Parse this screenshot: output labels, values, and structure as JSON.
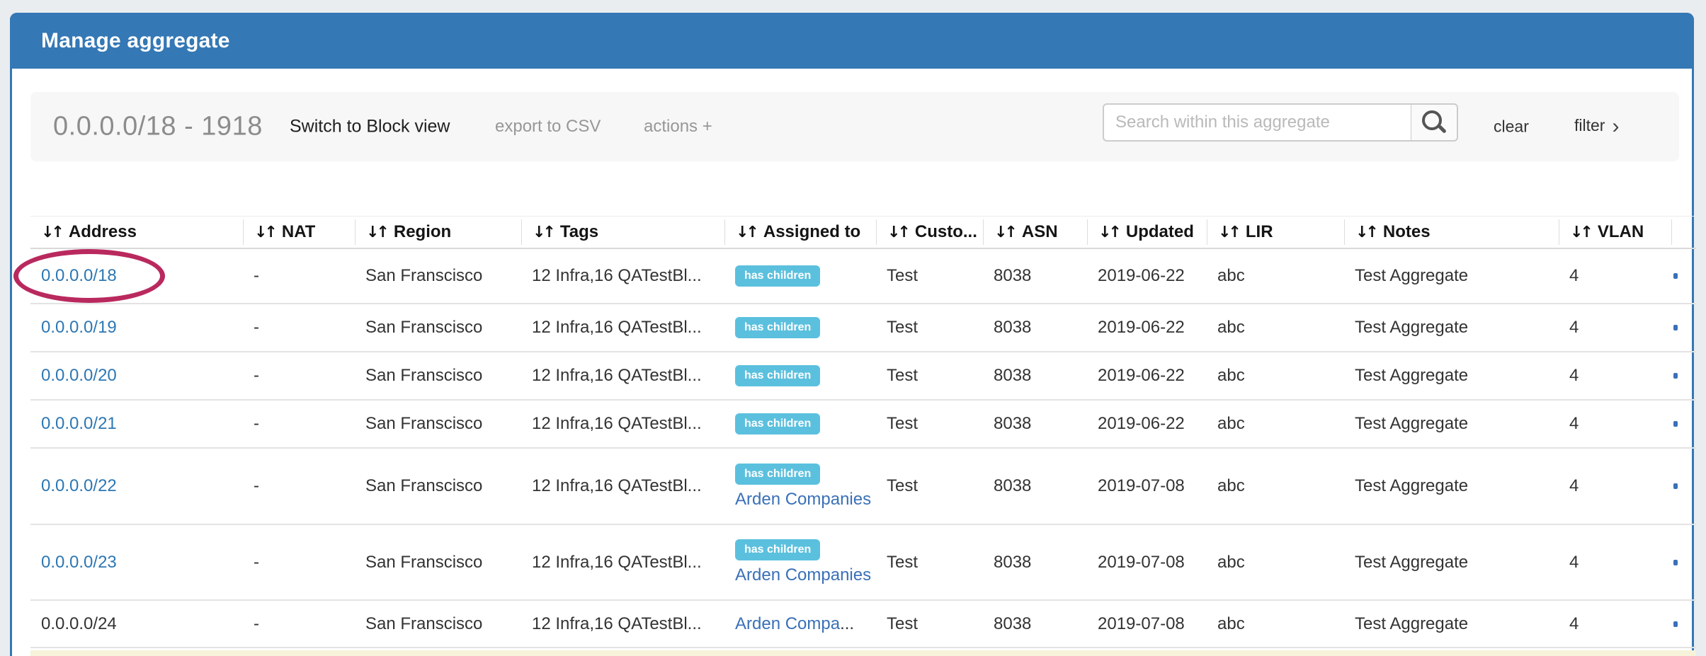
{
  "page": {
    "title": "Manage aggregate"
  },
  "toolbar": {
    "aggregate_label": "0.0.0.0/18 - 1918",
    "switch_view_label": "Switch to Block view",
    "export_csv_label": "export to CSV",
    "actions_label": "actions +",
    "search": {
      "placeholder": "Search within this aggregate",
      "value": ""
    },
    "clear_label": "clear",
    "filter_label": "filter",
    "filter_chevron": "›"
  },
  "table": {
    "sort_glyph": "↓↑",
    "badge_label": "has children",
    "columns": [
      "Address",
      "NAT",
      "Region",
      "Tags",
      "Assigned to",
      "Custo...",
      "ASN",
      "Updated",
      "LIR",
      "Notes",
      "VLAN"
    ],
    "rows": [
      {
        "address": "0.0.0.0/18",
        "address_is_link": true,
        "circled": true,
        "nat": "-",
        "region": "San Franscisco",
        "tags": "12 Infra,16 QATestBl...",
        "has_children": true,
        "assigned_to": "",
        "assigned_truncated": "",
        "customer": "Test",
        "asn": "8038",
        "updated": "2019-06-22",
        "lir": "abc",
        "notes": "Test Aggregate",
        "vlan": "4"
      },
      {
        "address": "0.0.0.0/19",
        "address_is_link": true,
        "circled": false,
        "nat": "-",
        "region": "San Franscisco",
        "tags": "12 Infra,16 QATestBl...",
        "has_children": true,
        "assigned_to": "",
        "assigned_truncated": "",
        "customer": "Test",
        "asn": "8038",
        "updated": "2019-06-22",
        "lir": "abc",
        "notes": "Test Aggregate",
        "vlan": "4"
      },
      {
        "address": "0.0.0.0/20",
        "address_is_link": true,
        "circled": false,
        "nat": "-",
        "region": "San Franscisco",
        "tags": "12 Infra,16 QATestBl...",
        "has_children": true,
        "assigned_to": "",
        "assigned_truncated": "",
        "customer": "Test",
        "asn": "8038",
        "updated": "2019-06-22",
        "lir": "abc",
        "notes": "Test Aggregate",
        "vlan": "4"
      },
      {
        "address": "0.0.0.0/21",
        "address_is_link": true,
        "circled": false,
        "nat": "-",
        "region": "San Franscisco",
        "tags": "12 Infra,16 QATestBl...",
        "has_children": true,
        "assigned_to": "",
        "assigned_truncated": "",
        "customer": "Test",
        "asn": "8038",
        "updated": "2019-06-22",
        "lir": "abc",
        "notes": "Test Aggregate",
        "vlan": "4"
      },
      {
        "address": "0.0.0.0/22",
        "address_is_link": true,
        "circled": false,
        "nat": "-",
        "region": "San Franscisco",
        "tags": "12 Infra,16 QATestBl...",
        "has_children": true,
        "assigned_to": "Arden Companies",
        "assigned_truncated": "",
        "customer": "Test",
        "asn": "8038",
        "updated": "2019-07-08",
        "lir": "abc",
        "notes": "Test Aggregate",
        "vlan": "4"
      },
      {
        "address": "0.0.0.0/23",
        "address_is_link": true,
        "circled": false,
        "nat": "-",
        "region": "San Franscisco",
        "tags": "12 Infra,16 QATestBl...",
        "has_children": true,
        "assigned_to": "Arden Companies",
        "assigned_truncated": "",
        "customer": "Test",
        "asn": "8038",
        "updated": "2019-07-08",
        "lir": "abc",
        "notes": "Test Aggregate",
        "vlan": "4"
      },
      {
        "address": "0.0.0.0/24",
        "address_is_link": false,
        "circled": false,
        "nat": "-",
        "region": "San Franscisco",
        "tags": "12 Infra,16 QATestBl...",
        "has_children": false,
        "assigned_to": "Arden Compa",
        "assigned_truncated": "...",
        "customer": "Test",
        "asn": "8038",
        "updated": "2019-07-08",
        "lir": "abc",
        "notes": "Test Aggregate",
        "vlan": "4"
      }
    ]
  },
  "annotation": {
    "type": "ellipse",
    "color": "#b9295e",
    "target": "first row address"
  },
  "colors": {
    "page_bg": "#e9edf0",
    "panel_header_bg": "#3478b5",
    "badge_bg": "#5bc0de",
    "link": "#2d77b3",
    "assigned_link": "#3a70b8",
    "next_row_highlight": "#f6f3da",
    "annotation": "#b9295e"
  }
}
